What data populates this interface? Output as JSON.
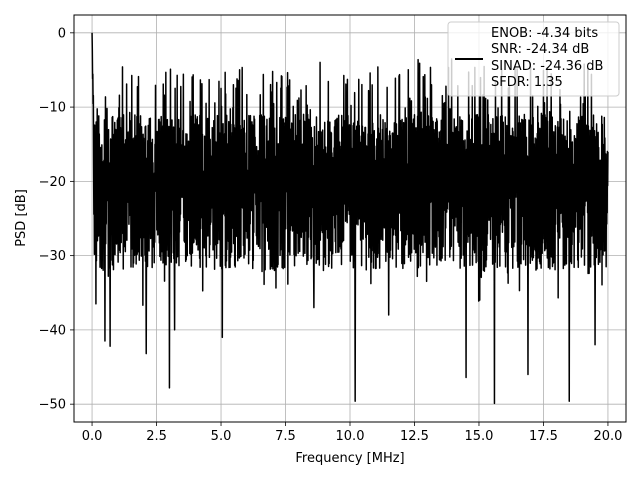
{
  "chart_data": {
    "type": "line",
    "title": "",
    "xlabel": "Frequency [MHz]",
    "ylabel": "PSD [dB]",
    "xlim": [
      -0.7,
      20.7
    ],
    "ylim": [
      -52.4,
      2.4
    ],
    "xticks": [
      0.0,
      2.5,
      5.0,
      7.5,
      10.0,
      12.5,
      15.0,
      17.5,
      20.0
    ],
    "xtick_labels": [
      "0.0",
      "2.5",
      "5.0",
      "7.5",
      "10.0",
      "12.5",
      "15.0",
      "17.5",
      "20.0"
    ],
    "yticks": [
      0,
      -10,
      -20,
      -30,
      -40,
      -50
    ],
    "ytick_labels": [
      "0",
      "−10",
      "−20",
      "−30",
      "−40",
      "−50"
    ],
    "grid": true,
    "legend_position": "top-right",
    "legend_entries": [
      "ENOB: -4.34 bits",
      "SNR: -24.34 dB",
      "SINAD: -24.36 dB",
      "SFDR: 1.35"
    ],
    "series": [
      {
        "color": "#000000",
        "x_start": 0.0,
        "x_end": 20.0,
        "points": 2001,
        "peak": {
          "x": 0.0,
          "y": 0.0
        },
        "typical_upper": -10,
        "typical_lower": -28,
        "dips": [
          {
            "x": 0.15,
            "y": -36.5
          },
          {
            "x": 0.5,
            "y": -41.5
          },
          {
            "x": 0.7,
            "y": -42.2
          },
          {
            "x": 2.1,
            "y": -43.2
          },
          {
            "x": 3.0,
            "y": -47.8
          },
          {
            "x": 3.2,
            "y": -40.0
          },
          {
            "x": 5.05,
            "y": -41.0
          },
          {
            "x": 8.6,
            "y": -37.0
          },
          {
            "x": 10.2,
            "y": -49.6
          },
          {
            "x": 11.5,
            "y": -38.0
          },
          {
            "x": 14.5,
            "y": -46.4
          },
          {
            "x": 15.6,
            "y": -49.9
          },
          {
            "x": 16.9,
            "y": -46.0
          },
          {
            "x": 18.5,
            "y": -49.6
          },
          {
            "x": 19.5,
            "y": -42.0
          }
        ]
      }
    ]
  }
}
